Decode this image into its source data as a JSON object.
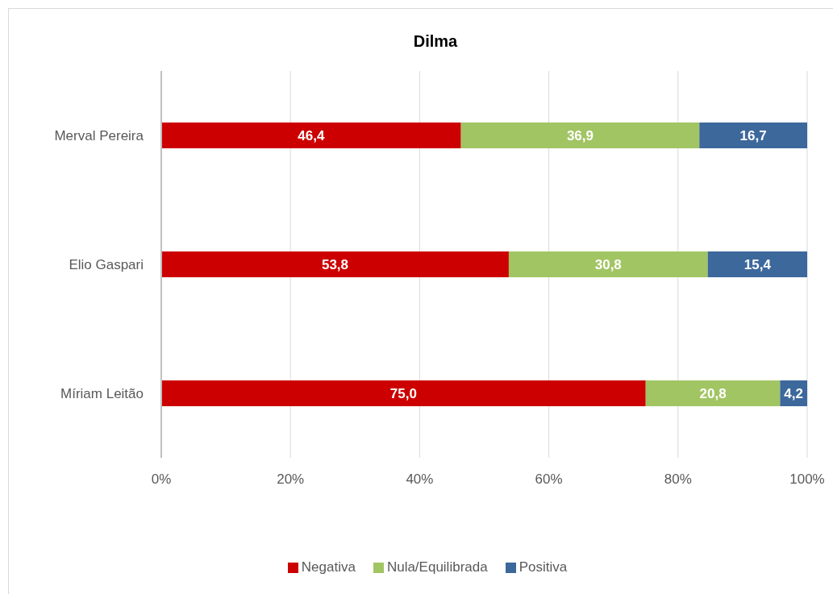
{
  "chart_data": {
    "type": "bar",
    "orientation": "horizontal",
    "stacked": true,
    "title": "Dilma",
    "categories": [
      "Merval Pereira",
      "Elio Gaspari",
      "Míriam Leitão"
    ],
    "series": [
      {
        "name": "Negativa",
        "color": "#cc0000",
        "values": [
          46.4,
          53.8,
          75.0
        ],
        "value_labels": [
          "46,4",
          "53,8",
          "75,0"
        ]
      },
      {
        "name": "Nula/Equilibrada",
        "color": "#a2c563",
        "values": [
          36.9,
          30.8,
          20.8
        ],
        "value_labels": [
          "36,9",
          "30,8",
          "20,8"
        ]
      },
      {
        "name": "Positiva",
        "color": "#3c689c",
        "values": [
          16.7,
          15.4,
          4.2
        ],
        "value_labels": [
          "16,7",
          "15,4",
          "4,2"
        ]
      }
    ],
    "xlim": [
      0,
      100
    ],
    "xticks": [
      {
        "value": 0,
        "label": "0%"
      },
      {
        "value": 20,
        "label": "20%"
      },
      {
        "value": 40,
        "label": "40%"
      },
      {
        "value": 60,
        "label": "60%"
      },
      {
        "value": 80,
        "label": "80%"
      },
      {
        "value": 100,
        "label": "100%"
      }
    ],
    "grid": "x",
    "legend": "bottom"
  }
}
